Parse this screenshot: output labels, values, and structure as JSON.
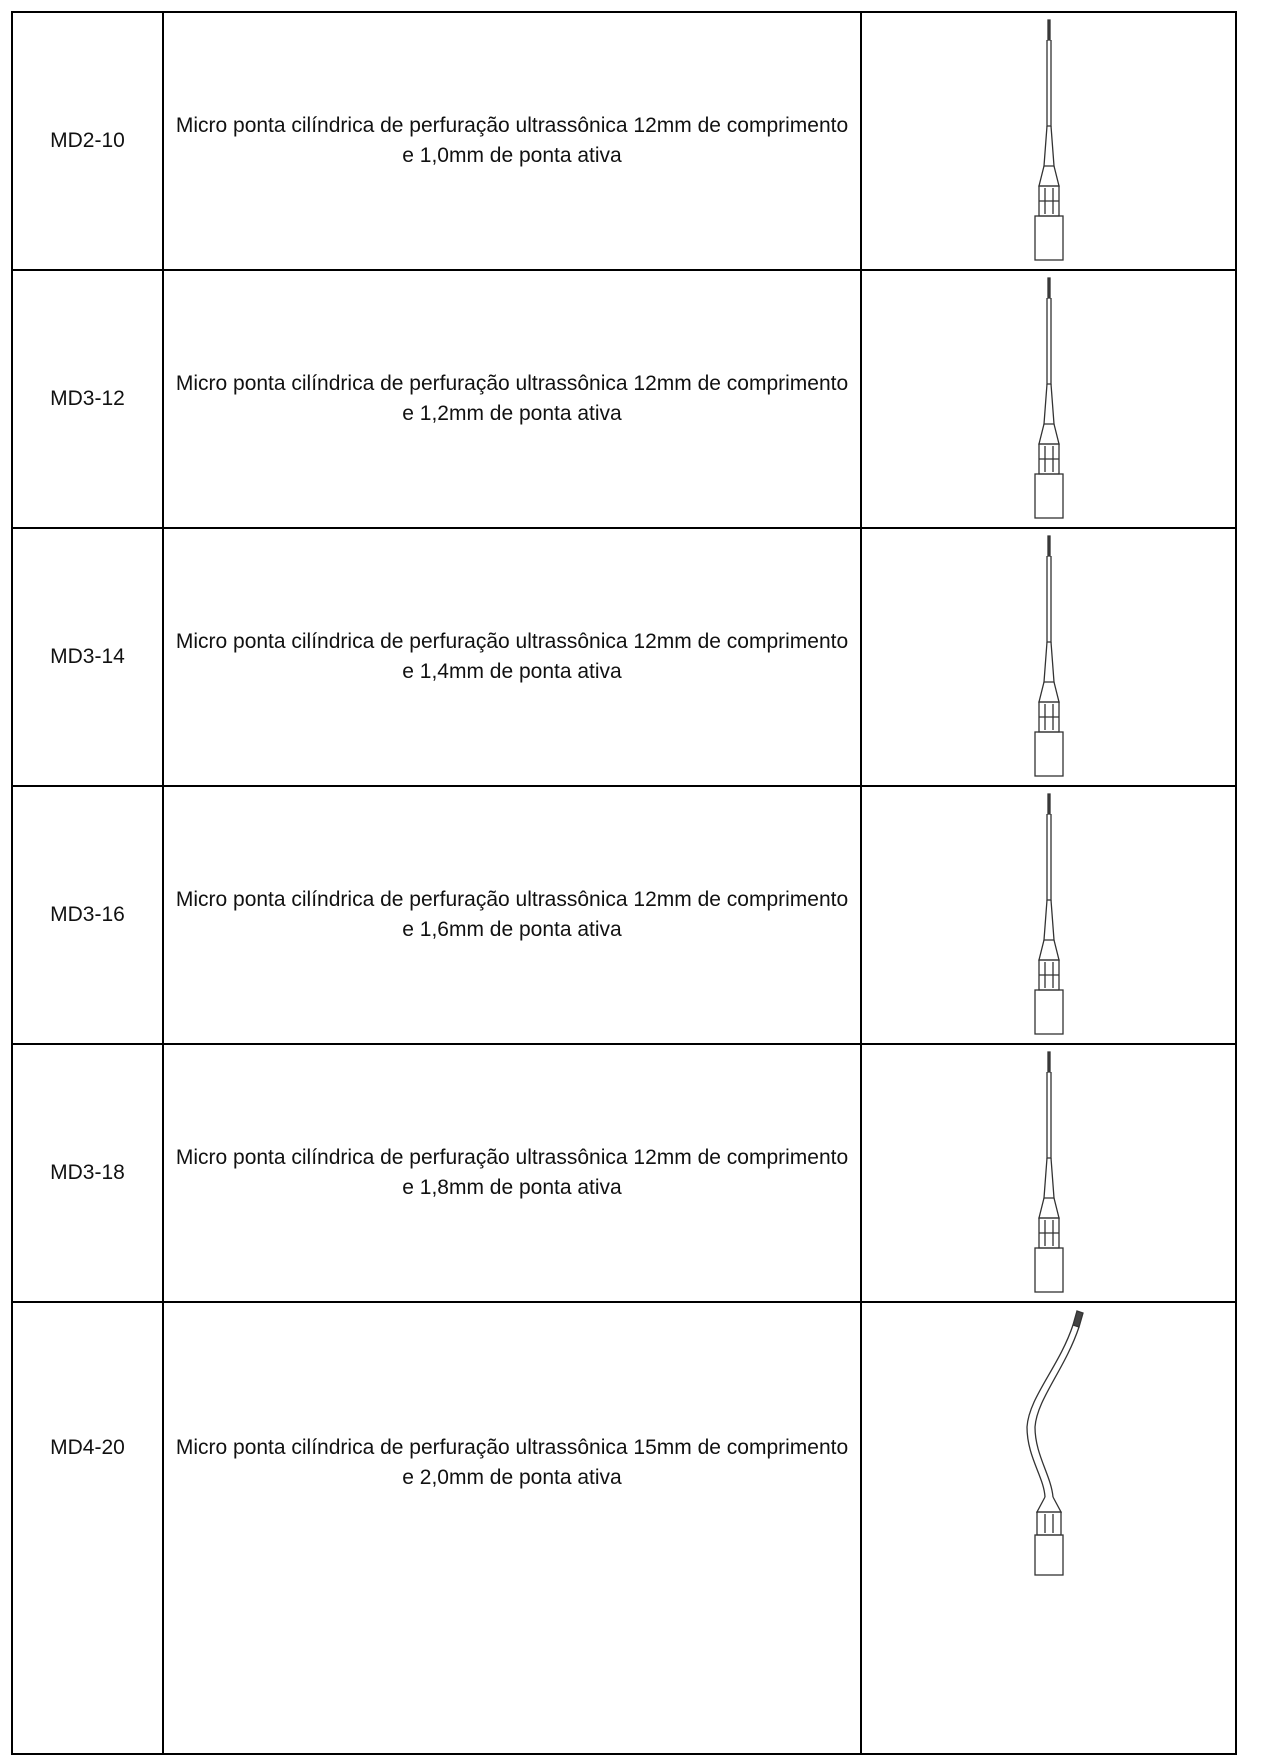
{
  "table": {
    "rows": [
      [
        "MD2-10",
        "Micro ponta cilíndrica de perfuração ultrassônica 12mm de comprimento e 1,0mm de ponta ativa"
      ],
      [
        "MD3-12",
        "Micro ponta cilíndrica de perfuração ultrassônica 12mm de comprimento e 1,2mm de ponta ativa"
      ],
      [
        "MD3-14",
        "Micro ponta cilíndrica de perfuração ultrassônica 12mm de comprimento e 1,4mm de ponta ativa"
      ],
      [
        "MD3-16",
        "Micro ponta cilíndrica de perfuração ultrassônica 12mm de comprimento e 1,6mm de ponta ativa"
      ],
      [
        "MD3-18",
        "Micro ponta cilíndrica de perfuração ultrassônica 12mm de comprimento e 1,8mm de ponta ativa"
      ],
      [
        "MD4-20",
        "Micro ponta cilíndrica de perfuração ultrassônica 15mm de comprimento e 2,0mm de ponta ativa"
      ]
    ]
  }
}
